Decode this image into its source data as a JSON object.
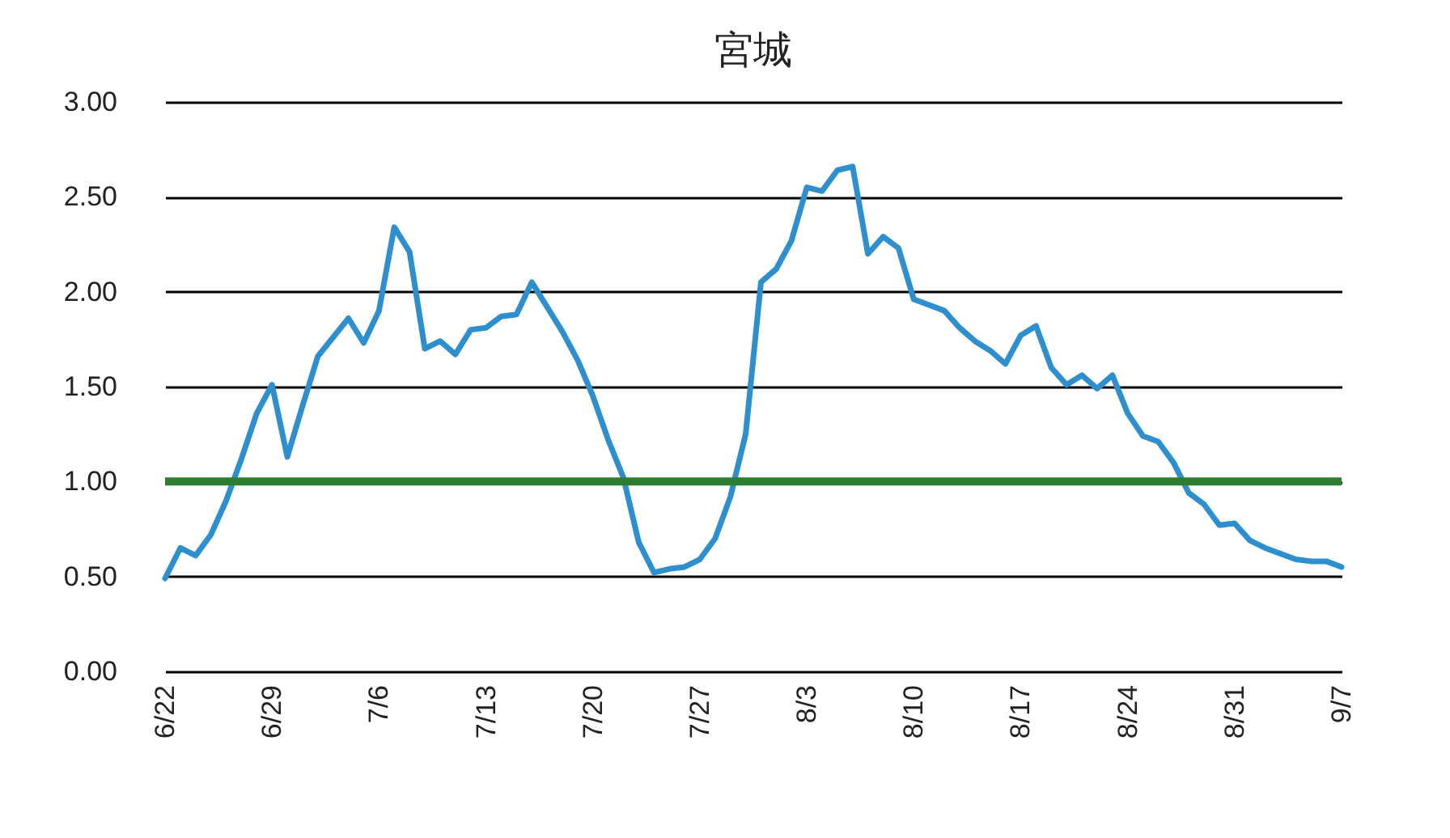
{
  "chart_data": {
    "type": "line",
    "title": "宮城",
    "x": [
      "--06-22",
      "--06-23",
      "--06-24",
      "--06-25",
      "--06-26",
      "--06-27",
      "--06-28",
      "--06-29",
      "--06-30",
      "--07-01",
      "--07-02",
      "--07-03",
      "--07-04",
      "--07-05",
      "--07-06",
      "--07-07",
      "--07-08",
      "--07-09",
      "--07-10",
      "--07-11",
      "--07-12",
      "--07-13",
      "--07-14",
      "--07-15",
      "--07-16",
      "--07-17",
      "--07-18",
      "--07-19",
      "--07-20",
      "--07-21",
      "--07-22",
      "--07-23",
      "--07-24",
      "--07-25",
      "--07-26",
      "--07-27",
      "--07-28",
      "--07-29",
      "--07-30",
      "--07-31",
      "--08-01",
      "--08-02",
      "--08-03",
      "--08-04",
      "--08-05",
      "--08-06",
      "--08-07",
      "--08-08",
      "--08-09",
      "--08-10",
      "--08-11",
      "--08-12",
      "--08-13",
      "--08-14",
      "--08-15",
      "--08-16",
      "--08-17",
      "--08-18",
      "--08-19",
      "--08-20",
      "--08-21",
      "--08-22",
      "--08-23",
      "--08-24",
      "--08-25",
      "--08-26",
      "--08-27",
      "--08-28",
      "--08-29",
      "--08-30",
      "--08-31",
      "--09-01",
      "--09-02",
      "--09-03",
      "--09-04",
      "--09-05",
      "--09-06",
      "--09-07"
    ],
    "series": [
      {
        "color": "#2e8fcf",
        "values": [
          0.49,
          0.65,
          0.61,
          0.72,
          0.9,
          1.12,
          1.36,
          1.51,
          1.13,
          1.4,
          1.66,
          1.76,
          1.86,
          1.73,
          1.9,
          2.34,
          2.21,
          1.7,
          1.74,
          1.67,
          1.8,
          1.81,
          1.87,
          1.88,
          2.05,
          1.92,
          1.79,
          1.64,
          1.45,
          1.22,
          1.02,
          0.68,
          0.52,
          0.54,
          0.55,
          0.59,
          0.7,
          0.92,
          1.25,
          2.05,
          2.12,
          2.27,
          2.55,
          2.53,
          2.64,
          2.66,
          2.2,
          2.29,
          2.23,
          1.96,
          1.93,
          1.9,
          1.81,
          1.74,
          1.69,
          1.62,
          1.77,
          1.82,
          1.6,
          1.51,
          1.56,
          1.49,
          1.56,
          1.36,
          1.24,
          1.21,
          1.1,
          0.94,
          0.88,
          0.77,
          0.78,
          0.69,
          0.65,
          0.62,
          0.59,
          0.58,
          0.58,
          0.55
        ]
      }
    ],
    "xlim": [
      "--06-22",
      "--09-07"
    ],
    "xticks": [
      {
        "value": "--06-22",
        "label": "6/22"
      },
      {
        "value": "--06-29",
        "label": "6/29"
      },
      {
        "value": "--07-06",
        "label": "7/6"
      },
      {
        "value": "--07-13",
        "label": "7/13"
      },
      {
        "value": "--07-20",
        "label": "7/20"
      },
      {
        "value": "--07-27",
        "label": "7/27"
      },
      {
        "value": "--08-03",
        "label": "8/3"
      },
      {
        "value": "--08-10",
        "label": "8/10"
      },
      {
        "value": "--08-17",
        "label": "8/17"
      },
      {
        "value": "--08-24",
        "label": "8/24"
      },
      {
        "value": "--08-31",
        "label": "8/31"
      },
      {
        "value": "--09-07",
        "label": "9/7"
      }
    ],
    "ylim": [
      0,
      3
    ],
    "yticks": [
      {
        "value": 0,
        "label": "0.00"
      },
      {
        "value": 0.5,
        "label": "0.50"
      },
      {
        "value": 1,
        "label": "1.00"
      },
      {
        "value": 1.5,
        "label": "1.50"
      },
      {
        "value": 2,
        "label": "2.00"
      },
      {
        "value": 2.5,
        "label": "2.50"
      },
      {
        "value": 3,
        "label": "3.00"
      }
    ],
    "grid": "y",
    "ref_lines": [
      {
        "axis": "y",
        "value": 1,
        "color": "#2e7d32"
      }
    ]
  }
}
